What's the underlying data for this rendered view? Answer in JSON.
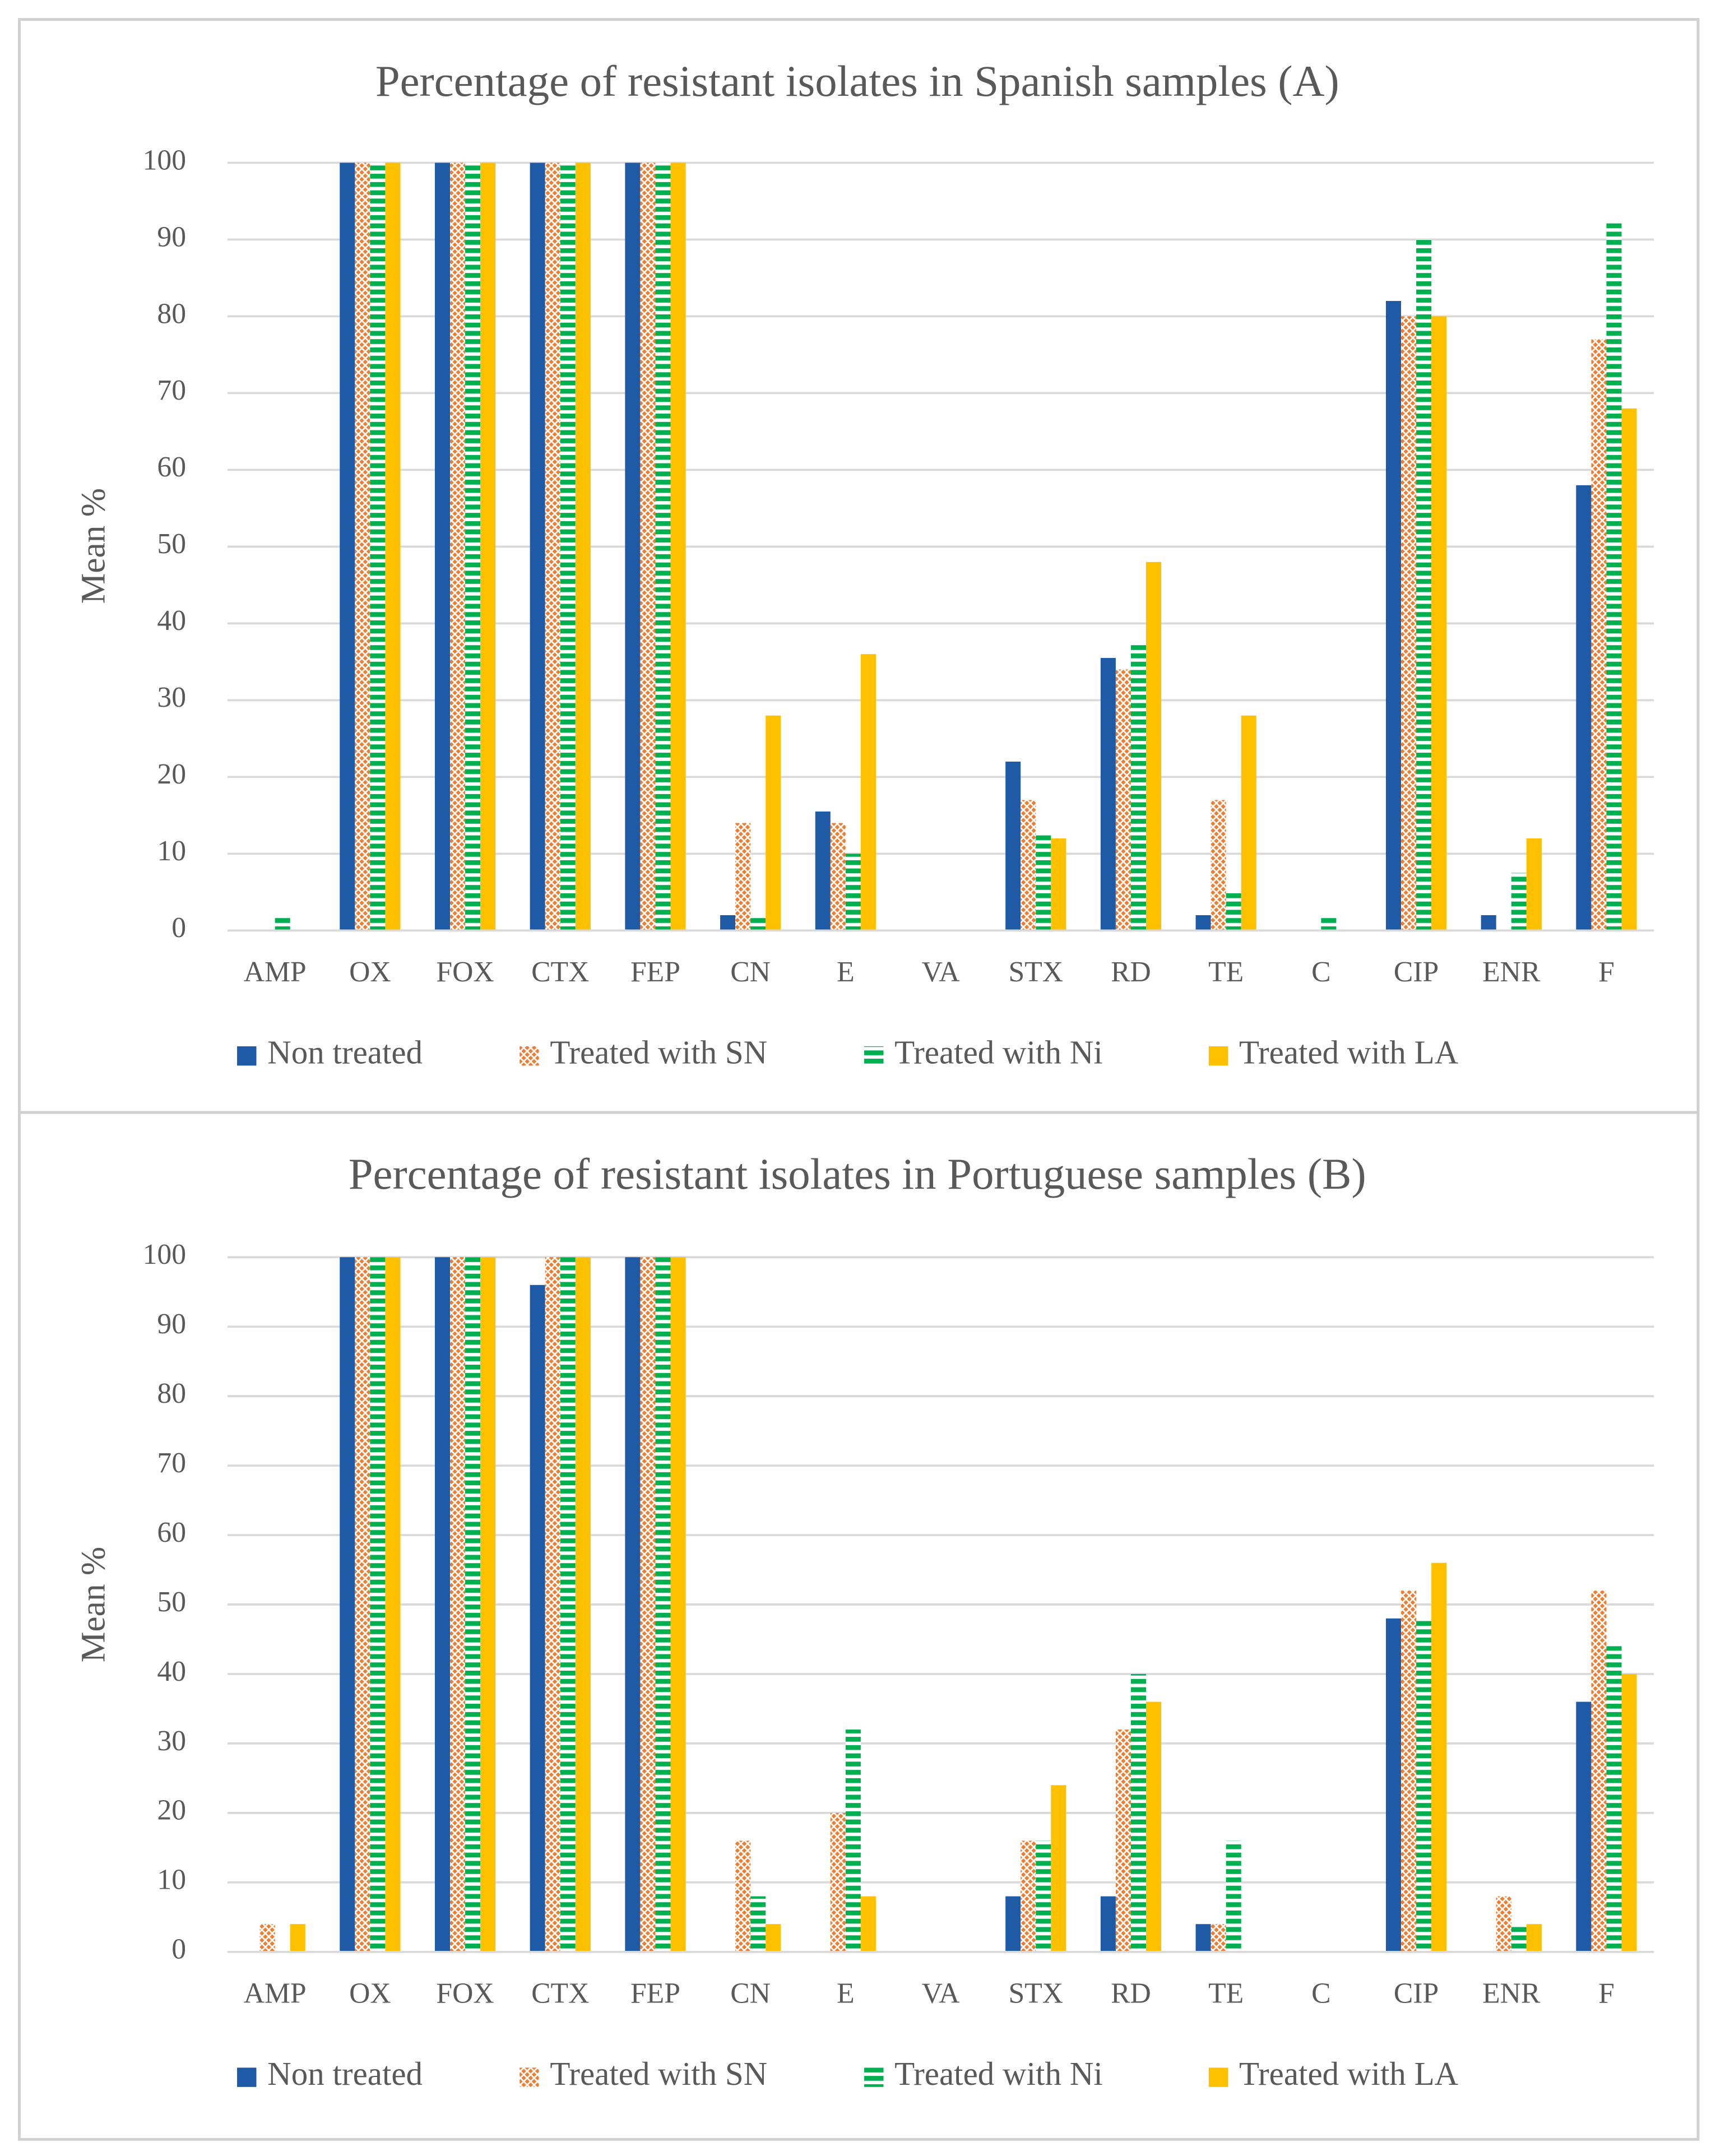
{
  "chart_data": [
    {
      "type": "bar",
      "title": "Percentage of resistant isolates in Spanish samples (A)",
      "y_label": "Mean %",
      "categories": [
        "AMP",
        "OX",
        "FOX",
        "CTX",
        "FEP",
        "CN",
        "E",
        "VA",
        "STX",
        "RD",
        "TE",
        "C",
        "CIP",
        "ENR",
        "F"
      ],
      "series": [
        {
          "name": "Non treated",
          "color": "#1f5aa6",
          "pattern": "solid",
          "values": [
            0,
            100,
            100,
            100,
            100,
            2,
            15.5,
            0,
            22,
            35.5,
            2,
            0,
            82,
            2,
            58
          ]
        },
        {
          "name": "Treated with SN",
          "color": "#ed7d31",
          "pattern": "crosshatch",
          "values": [
            0,
            100,
            100,
            100,
            100,
            14,
            14,
            0,
            17,
            34,
            17,
            0,
            80,
            0,
            77
          ]
        },
        {
          "name": "Treated with Ni",
          "color": "#00b050",
          "pattern": "horizontal",
          "values": [
            2,
            100,
            100,
            100,
            100,
            2,
            10,
            0,
            12.5,
            37.5,
            5,
            2,
            90,
            7.5,
            92.5
          ]
        },
        {
          "name": "Treated with LA",
          "color": "#ffc000",
          "pattern": "solid",
          "values": [
            0,
            100,
            100,
            100,
            100,
            28,
            36,
            0,
            12,
            48,
            28,
            0,
            80,
            12,
            68
          ]
        }
      ],
      "ylim": [
        0,
        100
      ],
      "yticks": [
        0,
        10,
        20,
        30,
        40,
        50,
        60,
        70,
        80,
        90,
        100
      ],
      "grid": true,
      "legend": "bottom"
    },
    {
      "type": "bar",
      "title": "Percentage of resistant isolates in Portuguese samples (B)",
      "y_label": "Mean %",
      "categories": [
        "AMP",
        "OX",
        "FOX",
        "CTX",
        "FEP",
        "CN",
        "E",
        "VA",
        "STX",
        "RD",
        "TE",
        "C",
        "CIP",
        "ENR",
        "F"
      ],
      "series": [
        {
          "name": "Non treated",
          "color": "#1f5aa6",
          "pattern": "solid",
          "values": [
            0,
            100,
            100,
            96,
            100,
            0,
            0,
            0,
            8,
            8,
            4,
            0,
            48,
            0,
            36
          ]
        },
        {
          "name": "Treated with SN",
          "color": "#ed7d31",
          "pattern": "crosshatch",
          "values": [
            4,
            100,
            100,
            100,
            100,
            16,
            20,
            0,
            16,
            32,
            4,
            0,
            52,
            8,
            52
          ]
        },
        {
          "name": "Treated with Ni",
          "color": "#00b050",
          "pattern": "horizontal",
          "values": [
            0,
            100,
            100,
            100,
            100,
            8,
            32,
            0,
            16,
            40,
            16,
            0,
            48,
            4,
            44
          ]
        },
        {
          "name": "Treated with LA",
          "color": "#ffc000",
          "pattern": "solid",
          "values": [
            4,
            100,
            100,
            100,
            100,
            4,
            8,
            0,
            24,
            36,
            0,
            0,
            56,
            4,
            40
          ]
        }
      ],
      "ylim": [
        0,
        100
      ],
      "yticks": [
        0,
        10,
        20,
        30,
        40,
        50,
        60,
        70,
        80,
        90,
        100
      ],
      "grid": true,
      "legend": "bottom"
    }
  ]
}
